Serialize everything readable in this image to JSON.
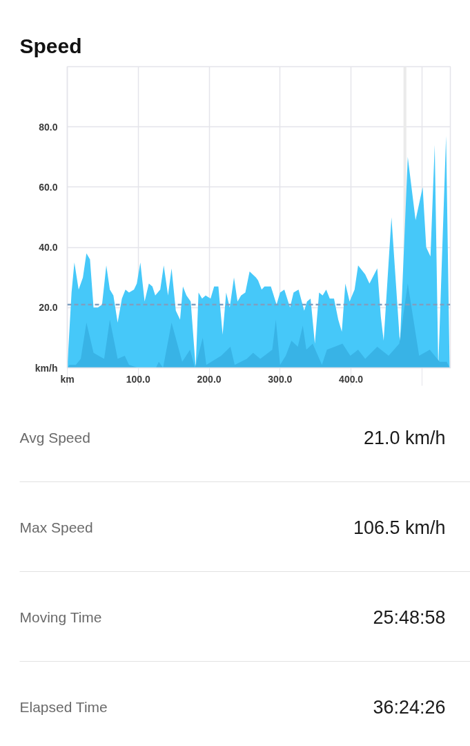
{
  "chart_data": [
    {
      "type": "area",
      "title": "Speed",
      "xlim": [
        0,
        540
      ],
      "ylim": [
        0,
        100
      ],
      "xticks": [
        {
          "value": 0,
          "label": "km"
        },
        {
          "value": 100,
          "label": "100.0"
        },
        {
          "value": 200,
          "label": "200.0"
        },
        {
          "value": 300,
          "label": "300.0"
        },
        {
          "value": 400,
          "label": "400.0"
        },
        {
          "value": 500,
          "label": null
        }
      ],
      "yticks": [
        {
          "value": 0,
          "label": "km/h"
        },
        {
          "value": 20,
          "label": "20.0"
        },
        {
          "value": 40,
          "label": "40.0"
        },
        {
          "value": 60,
          "label": "60.0"
        },
        {
          "value": 80,
          "label": "80.0"
        }
      ],
      "grid": true,
      "series": [
        {
          "color": "#46c8f9",
          "x": [
            0,
            6,
            10,
            16,
            22,
            27,
            32,
            37,
            43,
            49,
            55,
            60,
            65,
            71,
            77,
            82,
            87,
            94,
            98,
            103,
            109,
            115,
            120,
            124,
            131,
            136,
            142,
            147,
            153,
            159,
            163,
            168,
            174,
            181,
            185,
            190,
            195,
            202,
            207,
            213,
            219,
            224,
            229,
            235,
            240,
            245,
            251,
            257,
            266,
            269,
            274,
            278,
            287,
            291,
            295,
            300,
            306,
            314,
            319,
            326,
            334,
            338,
            343,
            349,
            355,
            360,
            365,
            370,
            376,
            382,
            387,
            392,
            398,
            405,
            410,
            420,
            426,
            437,
            442,
            446,
            457,
            469,
            480,
            491,
            501,
            506,
            512,
            518,
            523,
            534,
            539
          ],
          "values": [
            0,
            25,
            35,
            26,
            30,
            38,
            36,
            20,
            20,
            21,
            34,
            26,
            24,
            15,
            23,
            26,
            25,
            26,
            28,
            35,
            22,
            28,
            27,
            24,
            26,
            34,
            24,
            33,
            19,
            16,
            27,
            24,
            22,
            0,
            25,
            23,
            24,
            23,
            27,
            27,
            11,
            25,
            20,
            30,
            22,
            24,
            25,
            32,
            30,
            29,
            26,
            27,
            27,
            24,
            21,
            25,
            26,
            20,
            25,
            26,
            19,
            22,
            23,
            8,
            25,
            24,
            26,
            23,
            23,
            16,
            12,
            28,
            22,
            26,
            34,
            31,
            28,
            33,
            17,
            9,
            50,
            8,
            70,
            49,
            60,
            40,
            37,
            74,
            0,
            77,
            0
          ]
        },
        {
          "color": "#38b3e6",
          "x": [
            0,
            3,
            12,
            19,
            27,
            37,
            44,
            52,
            60,
            71,
            81,
            87,
            100,
            125,
            129,
            135,
            147,
            162,
            173,
            180,
            191,
            196,
            217,
            230,
            236,
            253,
            262,
            272,
            289,
            294,
            300,
            308,
            316,
            325,
            332,
            337,
            346,
            359,
            366,
            377,
            388,
            399,
            410,
            420,
            437,
            453,
            468,
            480,
            496,
            511,
            525,
            535,
            539
          ],
          "values": [
            0,
            1,
            1,
            3,
            15,
            5,
            4,
            3,
            16,
            3,
            4,
            1,
            0,
            0,
            2,
            0,
            15,
            2,
            6,
            0,
            10,
            1,
            4,
            7,
            1,
            3,
            5,
            3,
            6,
            16,
            1,
            4,
            9,
            7,
            14,
            6,
            8,
            1,
            6,
            7,
            8,
            4,
            6,
            3,
            7,
            4,
            8,
            28,
            4,
            6,
            2,
            2,
            0
          ]
        }
      ],
      "ref_lines": [
        {
          "axis": "y",
          "value": 21.0,
          "color": "#7f9fc0",
          "line_style": "dashed"
        }
      ],
      "bands": [
        {
          "axis": "x",
          "from": 474,
          "to": 478,
          "color": "#ebebeb"
        }
      ]
    },
    {
      "type": "other",
      "annotations": [
        "Avg Speed",
        "21.0 km/h",
        "Max Speed",
        "106.5 km/h",
        "Moving Time",
        "25:48:58",
        "Elapsed Time",
        "36:24:26"
      ]
    }
  ]
}
